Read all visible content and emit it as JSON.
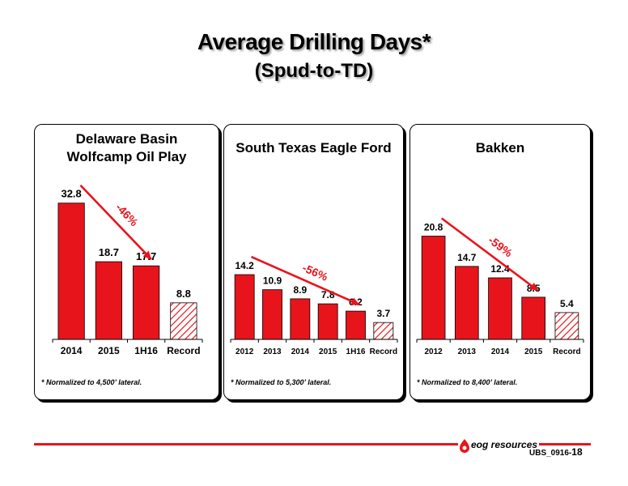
{
  "title": "Average Drilling Days*",
  "subtitle": "(Spud-to-TD)",
  "colors": {
    "bar": "#e8141b",
    "hatch": "#e8141b",
    "axis": "#000000",
    "arrow": "#e8141b"
  },
  "chart_data": [
    {
      "type": "bar",
      "title_lines": [
        "Delaware Basin",
        "Wolfcamp Oil Play"
      ],
      "categories": [
        "2014",
        "2015",
        "1H16",
        "Record"
      ],
      "values": [
        32.8,
        18.7,
        17.7,
        8.8
      ],
      "hatched": [
        false,
        false,
        false,
        true
      ],
      "annotation": "-46%",
      "footnote": "* Normalized to 4,500’ lateral."
    },
    {
      "type": "bar",
      "title_lines": [
        "South Texas Eagle Ford"
      ],
      "categories": [
        "2012",
        "2013",
        "2014",
        "2015",
        "1H16",
        "Record"
      ],
      "values": [
        14.2,
        10.9,
        8.9,
        7.8,
        6.2,
        3.7
      ],
      "hatched": [
        false,
        false,
        false,
        false,
        false,
        true
      ],
      "annotation": "-56%",
      "footnote": "* Normalized to 5,300’ lateral."
    },
    {
      "type": "bar",
      "title_lines": [
        "Bakken"
      ],
      "categories": [
        "2012",
        "2013",
        "2014",
        "2015",
        "Record"
      ],
      "values": [
        20.8,
        14.7,
        12.4,
        8.5,
        5.4
      ],
      "hatched": [
        false,
        false,
        false,
        false,
        true
      ],
      "annotation": "-59%",
      "footnote": "* Normalized to 8,400’ lateral."
    }
  ],
  "footer": {
    "logo_text": "eog resources",
    "slide_code": "UBS_0916-",
    "page_number": "18"
  }
}
